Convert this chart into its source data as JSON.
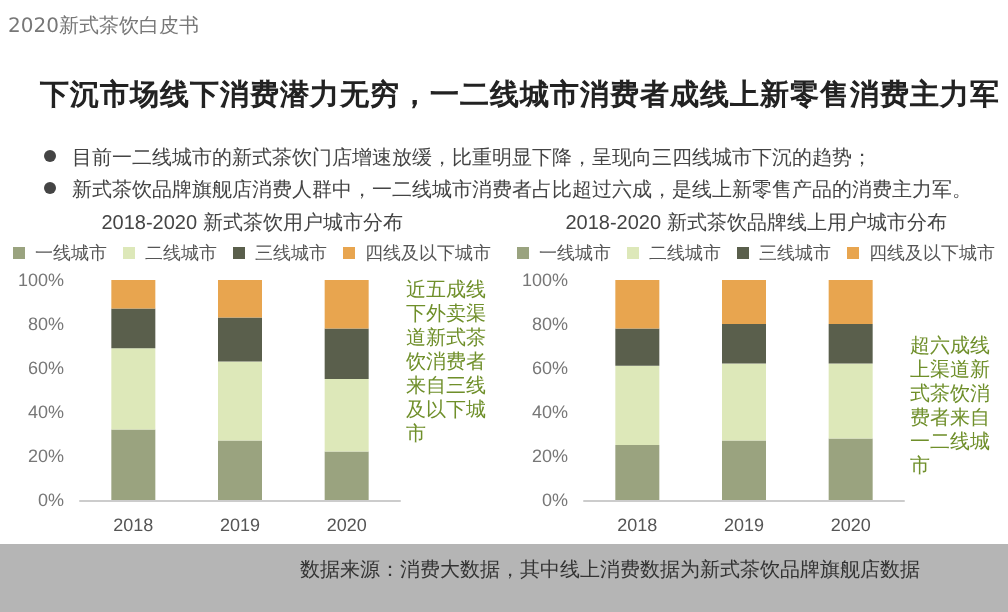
{
  "chart_data": [
    {
      "type": "other",
      "title": "下沉市场线下消费潜力无穷，一二线城市消费者成线上新零售消费主力军",
      "annotations": [
        "2020新式茶饮白皮书",
        "目前一二线城市的新式茶饮门店增速放缓，比重明显下降，呈现向三四线城市下沉的趋势；",
        "新式茶饮品牌旗舰店消费人群中，一二线城市消费者占比超过六成，是线上新零售产品的消费主力军。"
      ]
    },
    {
      "type": "bar",
      "title": "2018-2020 新式茶饮用户城市分布",
      "categories": [
        "2018",
        "2019",
        "2020"
      ],
      "stacked": true,
      "legend": "top",
      "grid": false,
      "ylim": [
        0,
        100
      ],
      "yticks": [
        {
          "value": 0,
          "label": "0%"
        },
        {
          "value": 20,
          "label": "20%"
        },
        {
          "value": 40,
          "label": "40%"
        },
        {
          "value": 60,
          "label": "60%"
        },
        {
          "value": 80,
          "label": "80%"
        },
        {
          "value": 100,
          "label": "100%"
        }
      ],
      "series": [
        {
          "name": "一线城市",
          "color": "#9aa37f",
          "values": [
            32,
            27,
            22
          ]
        },
        {
          "name": "二线城市",
          "color": "#dde8b9",
          "values": [
            37,
            36,
            33
          ]
        },
        {
          "name": "三线城市",
          "color": "#5a5f4c",
          "values": [
            18,
            20,
            23
          ]
        },
        {
          "name": "四线及以下城市",
          "color": "#e8a54f",
          "values": [
            13,
            17,
            22
          ]
        }
      ],
      "annotations": [
        "近五成线下外卖渠道新式茶饮消费者来自三线及以下城市"
      ]
    },
    {
      "type": "bar",
      "title": "2018-2020 新式茶饮品牌线上用户城市分布",
      "categories": [
        "2018",
        "2019",
        "2020"
      ],
      "stacked": true,
      "legend": "top",
      "grid": false,
      "ylim": [
        0,
        100
      ],
      "yticks": [
        {
          "value": 0,
          "label": "0%"
        },
        {
          "value": 20,
          "label": "20%"
        },
        {
          "value": 40,
          "label": "40%"
        },
        {
          "value": 60,
          "label": "60%"
        },
        {
          "value": 80,
          "label": "80%"
        },
        {
          "value": 100,
          "label": "100%"
        }
      ],
      "series": [
        {
          "name": "一线城市",
          "color": "#9aa37f",
          "values": [
            25,
            27,
            28
          ]
        },
        {
          "name": "二线城市",
          "color": "#dde8b9",
          "values": [
            36,
            35,
            34
          ]
        },
        {
          "name": "三线城市",
          "color": "#5a5f4c",
          "values": [
            17,
            18,
            18
          ]
        },
        {
          "name": "四线及以下城市",
          "color": "#e8a54f",
          "values": [
            22,
            20,
            20
          ]
        }
      ],
      "annotations": [
        "超六成线上渠道新式茶饮消费者来自一二线城市",
        "数据来源：消费大数据，其中线上消费数据为新式茶饮品牌旗舰店数据"
      ]
    }
  ]
}
